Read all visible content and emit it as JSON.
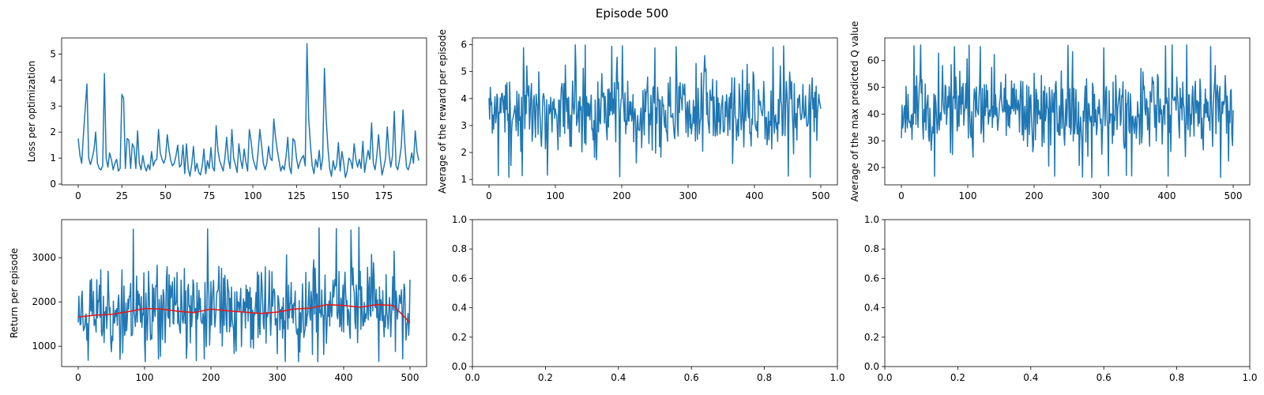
{
  "figure": {
    "suptitle": "Episode 500"
  },
  "colors": {
    "series": "#1f77b4",
    "moving_average": "#e31a1c",
    "axes": "#000000"
  },
  "chart_data": [
    {
      "type": "line",
      "panel": "top-left",
      "title": "",
      "xlabel": "",
      "ylabel": "Loss per optimization",
      "xlim": [
        -9.5,
        199.5
      ],
      "ylim": [
        -0.03,
        5.62
      ],
      "xticks": [
        0,
        25,
        50,
        75,
        100,
        125,
        150,
        175
      ],
      "yticks": [
        0,
        1,
        2,
        3,
        4,
        5
      ],
      "series": [
        {
          "x_start": 0,
          "values": [
            1.75,
            1.1,
            0.8,
            1.9,
            2.9,
            3.85,
            1.0,
            0.75,
            1.0,
            1.3,
            2.0,
            0.8,
            0.6,
            0.55,
            0.7,
            4.25,
            1.0,
            0.65,
            1.2,
            0.95,
            0.55,
            0.8,
            0.95,
            0.5,
            0.6,
            3.45,
            3.3,
            0.6,
            1.75,
            1.7,
            0.6,
            1.55,
            1.4,
            0.6,
            2.05,
            0.8,
            0.55,
            1.1,
            0.7,
            0.5,
            0.75,
            0.55,
            1.25,
            0.7,
            0.9,
            0.95,
            2.1,
            1.2,
            0.95,
            0.8,
            1.0,
            1.9,
            1.3,
            0.9,
            0.7,
            0.8,
            1.1,
            1.5,
            0.65,
            0.75,
            1.5,
            0.4,
            1.55,
            0.6,
            0.3,
            0.75,
            1.45,
            0.5,
            0.8,
            0.45,
            0.35,
            0.7,
            1.35,
            0.4,
            0.9,
            0.6,
            1.4,
            0.65,
            0.5,
            2.25,
            1.3,
            0.9,
            0.7,
            0.5,
            1.0,
            1.8,
            0.95,
            0.6,
            2.1,
            1.0,
            0.75,
            0.45,
            1.55,
            0.95,
            0.6,
            1.35,
            0.85,
            0.5,
            2.1,
            1.65,
            1.0,
            0.75,
            0.55,
            1.2,
            2.1,
            1.5,
            0.8,
            0.55,
            0.8,
            1.45,
            1.0,
            0.9,
            2.5,
            1.8,
            1.3,
            0.9,
            0.5,
            0.7,
            0.55,
            1.05,
            1.8,
            0.65,
            0.4,
            1.75,
            1.65,
            1.0,
            0.6,
            0.85,
            1.0,
            1.1,
            0.7,
            5.4,
            2.5,
            1.5,
            0.7,
            0.4,
            0.95,
            0.65,
            1.3,
            0.55,
            1.0,
            4.45,
            2.5,
            1.4,
            0.6,
            0.3,
            0.9,
            0.55,
            0.75,
            1.6,
            0.5,
            1.25,
            0.85,
            0.25,
            0.5,
            1.0,
            0.9,
            0.6,
            1.55,
            0.95,
            0.65,
            0.95,
            0.6,
            1.65,
            0.45,
            0.9,
            1.3,
            0.95,
            2.35,
            0.8,
            0.55,
            1.1,
            1.9,
            1.0,
            0.35,
            0.65,
            1.0,
            2.2,
            1.15,
            0.65,
            1.1,
            2.8,
            0.7,
            0.55,
            0.95,
            1.45,
            2.85,
            1.55,
            0.65,
            0.55,
            0.8,
            1.2,
            0.8,
            2.05,
            1.25,
            0.9
          ]
        }
      ]
    },
    {
      "type": "line",
      "panel": "top-middle",
      "title": "",
      "xlabel": "",
      "ylabel": "Average of the reward per episode",
      "xlim": [
        -25,
        525
      ],
      "ylim": [
        0.8,
        6.25
      ],
      "xticks": [
        0,
        100,
        200,
        300,
        400,
        500
      ],
      "yticks": [
        1,
        2,
        3,
        4,
        5,
        6
      ],
      "series": [
        {
          "generator": "random-walk",
          "n": 500,
          "seed": 7,
          "min": 1.05,
          "max": 6.0,
          "mean": 3.6,
          "note_values": "fluctuates between about 1.1 and 6.0, mean about 3.6"
        }
      ]
    },
    {
      "type": "line",
      "panel": "top-right",
      "title": "",
      "xlabel": "",
      "ylabel": "Average of the max predicted Q value",
      "xlim": [
        -25,
        525
      ],
      "ylim": [
        13.5,
        68.5
      ],
      "xticks": [
        0,
        100,
        200,
        300,
        400,
        500
      ],
      "yticks": [
        20,
        30,
        40,
        50,
        60
      ],
      "series": [
        {
          "generator": "random-walk",
          "n": 500,
          "seed": 11,
          "min": 16,
          "max": 66,
          "mean": 41,
          "note_values": "fluctuates between about 16 and 66, mean about 41"
        }
      ]
    },
    {
      "type": "line",
      "panel": "bottom-left",
      "title": "",
      "xlabel": "",
      "ylabel": "Return per episode",
      "xlim": [
        -25,
        525
      ],
      "ylim": [
        540,
        3860
      ],
      "xticks": [
        0,
        100,
        200,
        300,
        400,
        500
      ],
      "yticks": [
        1000,
        2000,
        3000
      ],
      "series": [
        {
          "generator": "random-walk",
          "n": 500,
          "seed": 23,
          "min": 650,
          "max": 3700,
          "mean": 1850
        },
        {
          "kind": "moving-average",
          "x": [
            0,
            25,
            50,
            75,
            100,
            125,
            150,
            175,
            200,
            225,
            250,
            275,
            300,
            325,
            350,
            375,
            400,
            425,
            450,
            475,
            500
          ],
          "values": [
            1660,
            1700,
            1720,
            1780,
            1850,
            1840,
            1790,
            1760,
            1840,
            1800,
            1770,
            1740,
            1770,
            1840,
            1860,
            1940,
            1920,
            1880,
            1940,
            1920,
            1530
          ]
        }
      ]
    },
    {
      "type": "line",
      "panel": "bottom-middle",
      "title": "",
      "xlabel": "",
      "ylabel": "",
      "empty": true,
      "xlim": [
        0,
        1
      ],
      "ylim": [
        0,
        1
      ],
      "xticks": [
        0.0,
        0.2,
        0.4,
        0.6,
        0.8,
        1.0
      ],
      "yticks": [
        0.0,
        0.2,
        0.4,
        0.6,
        0.8,
        1.0
      ]
    },
    {
      "type": "line",
      "panel": "bottom-right",
      "title": "",
      "xlabel": "",
      "ylabel": "",
      "empty": true,
      "xlim": [
        0,
        1
      ],
      "ylim": [
        0,
        1
      ],
      "xticks": [
        0.0,
        0.2,
        0.4,
        0.6,
        0.8,
        1.0
      ],
      "yticks": [
        0.0,
        0.2,
        0.4,
        0.6,
        0.8,
        1.0
      ]
    }
  ]
}
